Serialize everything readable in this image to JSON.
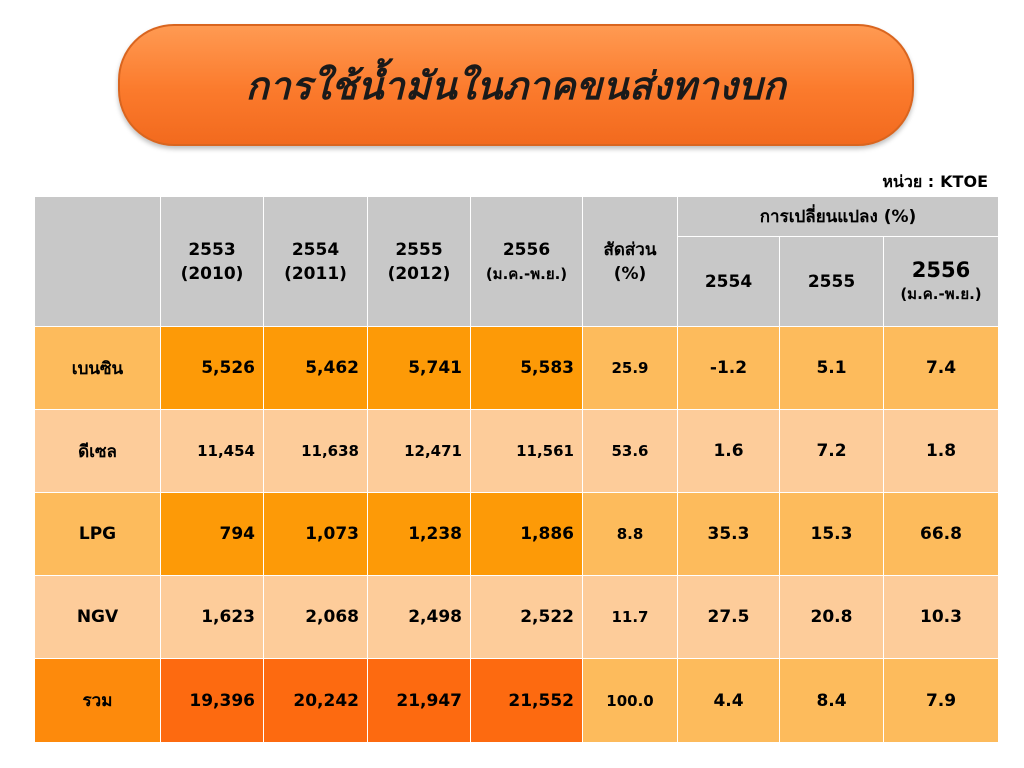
{
  "title": "การใช้น้ำมันในภาคขนส่งทางบก",
  "unit": {
    "label": "หน่วย :",
    "value": "KTOE"
  },
  "header": {
    "years": [
      {
        "line1": "2553",
        "line2": "(2010)"
      },
      {
        "line1": "2554",
        "line2": "(2011)"
      },
      {
        "line1": "2555",
        "line2": "(2012)"
      },
      {
        "line1": "2556",
        "line2": "(ม.ค.-พ.ย.)"
      }
    ],
    "share": {
      "line1": "สัดส่วน",
      "line2": "(%)"
    },
    "change_group": "การเปลี่ยนแปลง (%)",
    "change_years": [
      {
        "line1": "2554",
        "line2": ""
      },
      {
        "line1": "2555",
        "line2": ""
      },
      {
        "line1": "2556",
        "line2": "(ม.ค.-พ.ย.)"
      }
    ]
  },
  "rows": [
    {
      "label": "เบนซิน",
      "values": [
        "5,526",
        "5,462",
        "5,741",
        "5,583"
      ],
      "share": "25.9",
      "changes": [
        "-1.2",
        "5.1",
        "7.4"
      ]
    },
    {
      "label": "ดีเซล",
      "values": [
        "11,454",
        "11,638",
        "12,471",
        "11,561"
      ],
      "share": "53.6",
      "changes": [
        "1.6",
        "7.2",
        "1.8"
      ]
    },
    {
      "label": "LPG",
      "values": [
        "794",
        "1,073",
        "1,238",
        "1,886"
      ],
      "share": "8.8",
      "changes": [
        "35.3",
        "15.3",
        "66.8"
      ]
    },
    {
      "label": "NGV",
      "values": [
        "1,623",
        "2,068",
        "2,498",
        "2,522"
      ],
      "share": "11.7",
      "changes": [
        "27.5",
        "20.8",
        "10.3"
      ]
    },
    {
      "label": "รวม",
      "values": [
        "19,396",
        "20,242",
        "21,947",
        "21,552"
      ],
      "share": "100.0",
      "changes": [
        "4.4",
        "8.4",
        "7.9"
      ]
    }
  ]
}
